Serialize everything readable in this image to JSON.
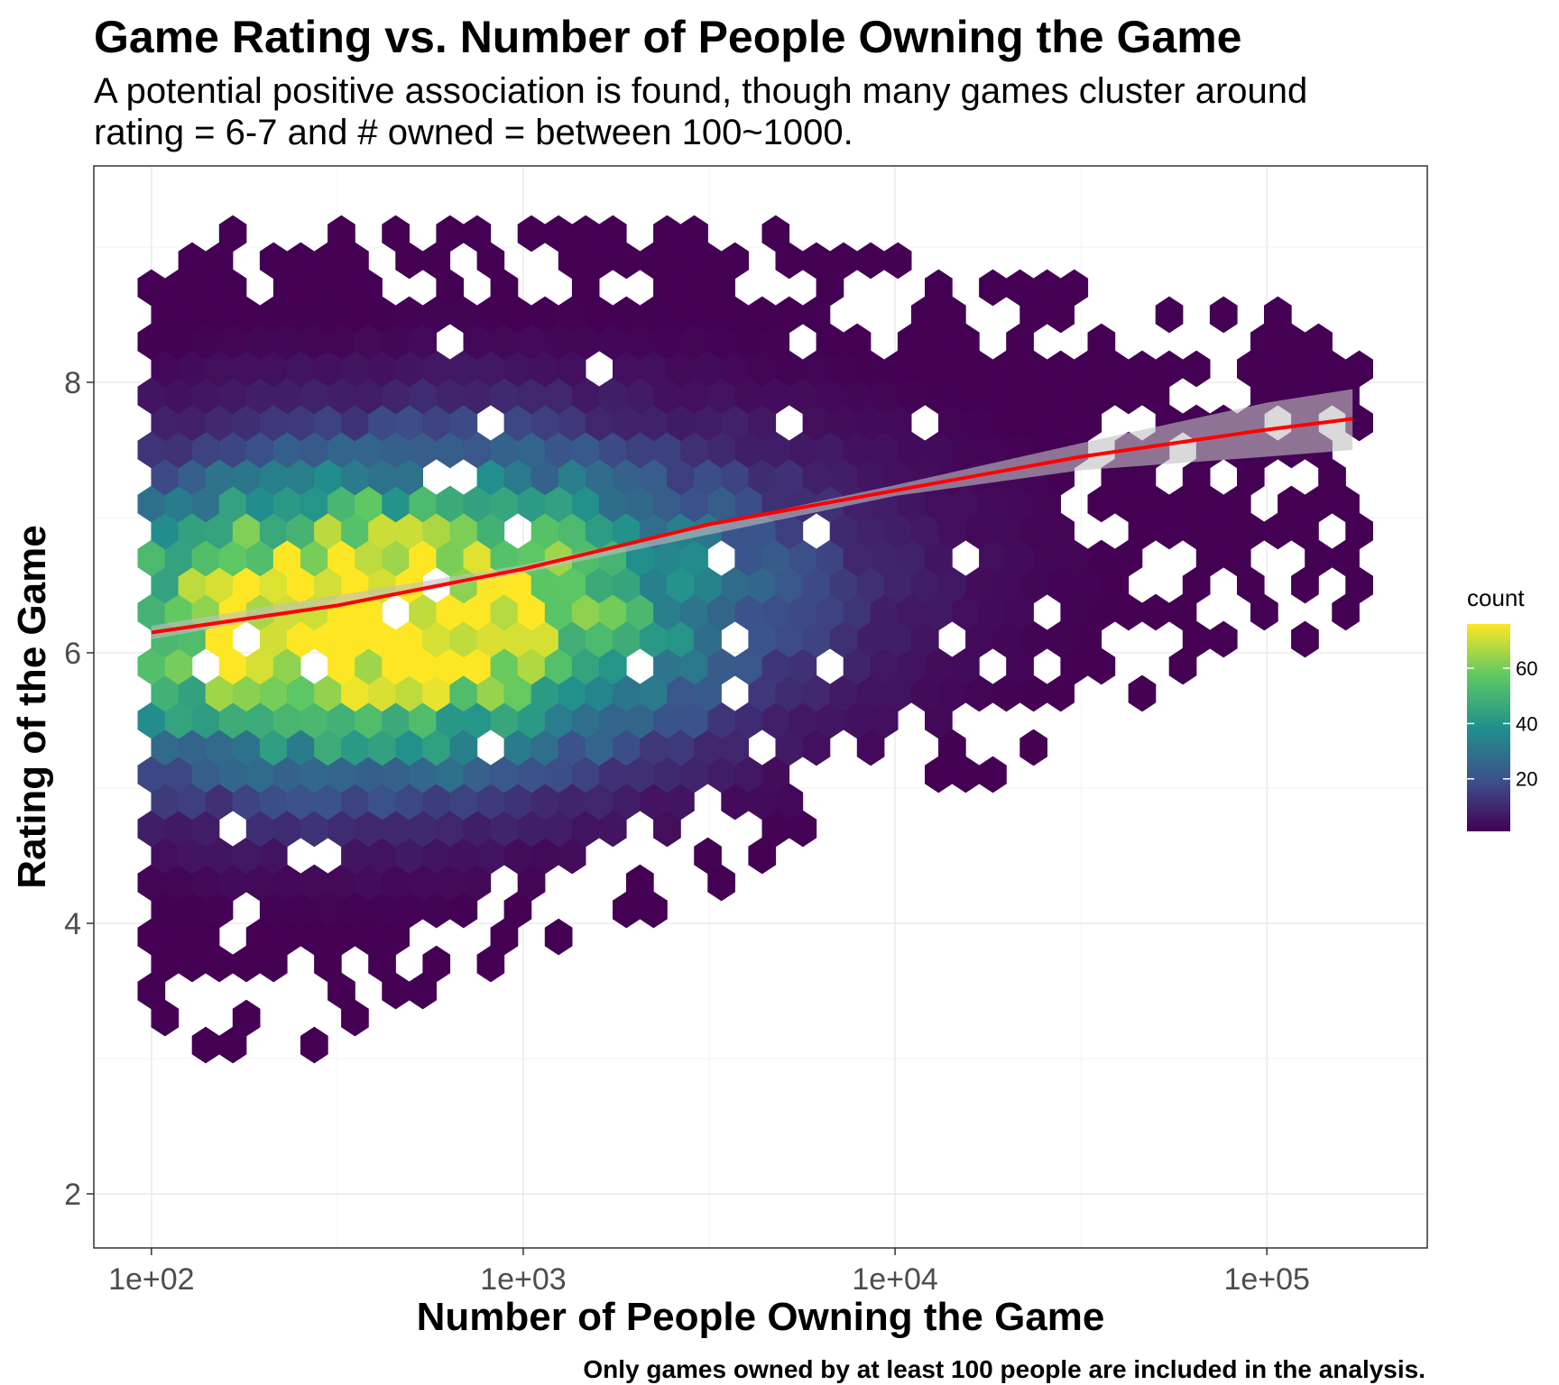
{
  "chart_data": {
    "type": "heatmap",
    "subtype": "hexbin",
    "title": "Game Rating vs. Number of People Owning the Game",
    "subtitle_lines": [
      "A potential positive association is found, though many games cluster around",
      "rating = 6-7 and # owned = between 100~1000."
    ],
    "xlabel": "Number of People Owning the Game",
    "ylabel": "Rating of the Game",
    "caption": "Only games owned by at least 100 people are included in the analysis.",
    "x_scale": "log10",
    "xlim": [
      70,
      270000
    ],
    "ylim": [
      1.6,
      9.6
    ],
    "x_ticks": [
      {
        "value": 100,
        "label": "1e+02"
      },
      {
        "value": 1000,
        "label": "1e+03"
      },
      {
        "value": 10000,
        "label": "1e+04"
      },
      {
        "value": 100000,
        "label": "1e+05"
      }
    ],
    "y_ticks": [
      {
        "value": 2,
        "label": "2"
      },
      {
        "value": 4,
        "label": "4"
      },
      {
        "value": 6,
        "label": "6"
      },
      {
        "value": 8,
        "label": "8"
      }
    ],
    "grid": true,
    "legend": {
      "title": "count",
      "position": "right",
      "range": [
        1,
        76
      ],
      "ticks": [
        {
          "value": 20,
          "label": "20"
        },
        {
          "value": 40,
          "label": "40"
        },
        {
          "value": 60,
          "label": "60"
        }
      ],
      "colormap": "viridis",
      "colors": [
        "#440154",
        "#3b528b",
        "#21908c",
        "#5dc863",
        "#fde725"
      ]
    },
    "density_model": {
      "description": "Approximate hexbin counts read from the image",
      "peak": {
        "log10_x": 2.5,
        "y": 6.2,
        "count": 76
      }
    },
    "trend_line": {
      "method": "smooth",
      "color": "#ff0000",
      "ribbon_color": "#bfbfbf",
      "points": [
        {
          "x": 100,
          "y": 6.15
        },
        {
          "x": 316,
          "y": 6.35
        },
        {
          "x": 1000,
          "y": 6.62
        },
        {
          "x": 3162,
          "y": 6.95
        },
        {
          "x": 10000,
          "y": 7.2
        },
        {
          "x": 31623,
          "y": 7.45
        },
        {
          "x": 100000,
          "y": 7.65
        },
        {
          "x": 170000,
          "y": 7.73
        }
      ],
      "ribbon": [
        {
          "x": 100,
          "lo": 6.1,
          "hi": 6.2
        },
        {
          "x": 1000,
          "lo": 6.59,
          "hi": 6.65
        },
        {
          "x": 10000,
          "lo": 7.16,
          "hi": 7.24
        },
        {
          "x": 31623,
          "lo": 7.35,
          "hi": 7.55
        },
        {
          "x": 100000,
          "lo": 7.45,
          "hi": 7.85
        },
        {
          "x": 170000,
          "lo": 7.5,
          "hi": 7.95
        }
      ]
    }
  }
}
